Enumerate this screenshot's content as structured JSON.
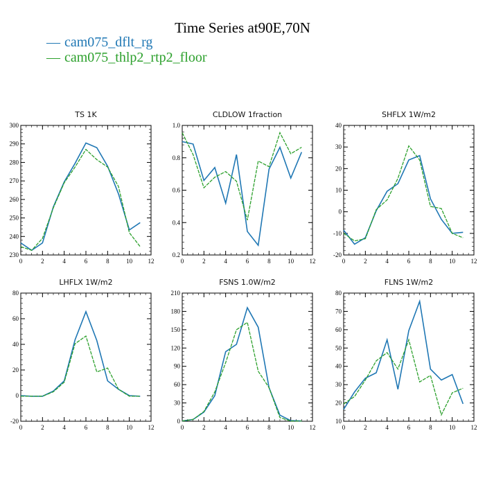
{
  "title": "Time Series at90E,70N",
  "legend": [
    {
      "name": "cam075_dflt_rg",
      "color": "#1f77b4"
    },
    {
      "name": "cam075_thlp2_rtp2_floor",
      "color": "#2ca02c"
    }
  ],
  "chart_data": [
    {
      "type": "line",
      "title": "TS   1K",
      "xlim": [
        0,
        12
      ],
      "ylim": [
        230,
        300
      ],
      "xticks": [
        0,
        2,
        4,
        6,
        8,
        10,
        12
      ],
      "yticks": [
        230,
        240,
        250,
        260,
        270,
        280,
        290,
        300
      ],
      "x": [
        0,
        1,
        2,
        3,
        4,
        5,
        6,
        7,
        8,
        9,
        10,
        11
      ],
      "series": [
        {
          "name": "cam075_dflt_rg",
          "values": [
            236.5,
            232.5,
            236.5,
            256,
            269.5,
            279.5,
            290.5,
            288,
            278,
            263,
            243.5,
            247.5
          ]
        },
        {
          "name": "cam075_thlp2_rtp2_floor",
          "values": [
            234.5,
            232.5,
            239,
            255.5,
            269,
            277.5,
            287,
            281.5,
            277.5,
            267,
            242,
            234.5
          ]
        }
      ]
    },
    {
      "type": "line",
      "title": "CLDLOW   1fraction",
      "xlim": [
        0,
        12
      ],
      "ylim": [
        0.2,
        1.0
      ],
      "xticks": [
        0,
        2,
        4,
        6,
        8,
        10,
        12
      ],
      "yticks": [
        0.2,
        0.4,
        0.6,
        0.8,
        1.0
      ],
      "ytick_labels": [
        "0.2",
        "0.4",
        "0.6",
        "0.8",
        "1.0"
      ],
      "x": [
        0,
        1,
        2,
        3,
        4,
        5,
        6,
        7,
        8,
        9,
        10,
        11
      ],
      "series": [
        {
          "name": "cam075_dflt_rg",
          "values": [
            0.9,
            0.885,
            0.66,
            0.74,
            0.52,
            0.82,
            0.345,
            0.26,
            0.73,
            0.865,
            0.675,
            0.835
          ]
        },
        {
          "name": "cam075_thlp2_rtp2_floor",
          "values": [
            0.955,
            0.82,
            0.615,
            0.68,
            0.715,
            0.655,
            0.415,
            0.78,
            0.745,
            0.955,
            0.825,
            0.865
          ]
        }
      ]
    },
    {
      "type": "line",
      "title": "SHFLX   1W/m2",
      "xlim": [
        0,
        12
      ],
      "ylim": [
        -20,
        40
      ],
      "xticks": [
        0,
        2,
        4,
        6,
        8,
        10,
        12
      ],
      "yticks": [
        -20,
        -10,
        0,
        10,
        20,
        30,
        40
      ],
      "x": [
        0,
        1,
        2,
        3,
        4,
        5,
        6,
        7,
        8,
        9,
        10,
        11
      ],
      "series": [
        {
          "name": "cam075_dflt_rg",
          "values": [
            -8.5,
            -15,
            -12,
            0.5,
            9.5,
            13,
            24,
            26,
            6,
            -3.5,
            -10,
            -9.5
          ]
        },
        {
          "name": "cam075_thlp2_rtp2_floor",
          "values": [
            -10,
            -13.5,
            -12.5,
            1,
            5.5,
            15.5,
            30.5,
            24,
            2.5,
            1.5,
            -10,
            -12
          ]
        }
      ]
    },
    {
      "type": "line",
      "title": "LHFLX   1W/m2",
      "xlim": [
        0,
        12
      ],
      "ylim": [
        -20,
        80
      ],
      "xticks": [
        0,
        2,
        4,
        6,
        8,
        10,
        12
      ],
      "yticks": [
        -20,
        0,
        20,
        40,
        60,
        80
      ],
      "x": [
        0,
        1,
        2,
        3,
        4,
        5,
        6,
        7,
        8,
        9,
        10,
        11
      ],
      "series": [
        {
          "name": "cam075_dflt_rg",
          "values": [
            0,
            -0.5,
            -0.5,
            3.5,
            11.5,
            43.5,
            65.5,
            43,
            11.5,
            5,
            0,
            -0.5
          ]
        },
        {
          "name": "cam075_thlp2_rtp2_floor",
          "values": [
            -0.5,
            -0.5,
            -0.5,
            3,
            10.5,
            40.5,
            46.5,
            18.5,
            21.5,
            5,
            -0.5,
            -0.5
          ]
        }
      ]
    },
    {
      "type": "line",
      "title": "FSNS   1.0W/m2",
      "xlim": [
        0,
        12
      ],
      "ylim": [
        0,
        210
      ],
      "xticks": [
        0,
        2,
        4,
        6,
        8,
        10,
        12
      ],
      "yticks": [
        0,
        30,
        60,
        90,
        120,
        150,
        180,
        210
      ],
      "x": [
        0,
        1,
        2,
        3,
        4,
        5,
        6,
        7,
        8,
        9,
        10,
        11
      ],
      "series": [
        {
          "name": "cam075_dflt_rg",
          "values": [
            0.5,
            3,
            15,
            42,
            114,
            126,
            186,
            154,
            55,
            10,
            1,
            0.5
          ]
        },
        {
          "name": "cam075_thlp2_rtp2_floor",
          "values": [
            0.5,
            3,
            16,
            48,
            96,
            150,
            162,
            82,
            55,
            6,
            0.5,
            0.5
          ]
        }
      ]
    },
    {
      "type": "line",
      "title": "FLNS   1W/m2",
      "xlim": [
        0,
        12
      ],
      "ylim": [
        10,
        80
      ],
      "xticks": [
        0,
        2,
        4,
        6,
        8,
        10,
        12
      ],
      "yticks": [
        10,
        20,
        30,
        40,
        50,
        60,
        70,
        80
      ],
      "x": [
        0,
        1,
        2,
        3,
        4,
        5,
        6,
        7,
        8,
        9,
        10,
        11
      ],
      "series": [
        {
          "name": "cam075_dflt_rg",
          "values": [
            16.5,
            26,
            33.5,
            36.5,
            54.5,
            27.5,
            59.5,
            75.5,
            38.5,
            32.5,
            35.5,
            19.5
          ]
        },
        {
          "name": "cam075_thlp2_rtp2_floor",
          "values": [
            19.5,
            23.5,
            32.5,
            43,
            47.5,
            38.5,
            54.5,
            31.5,
            35,
            13.5,
            25.5,
            28
          ]
        }
      ]
    }
  ]
}
